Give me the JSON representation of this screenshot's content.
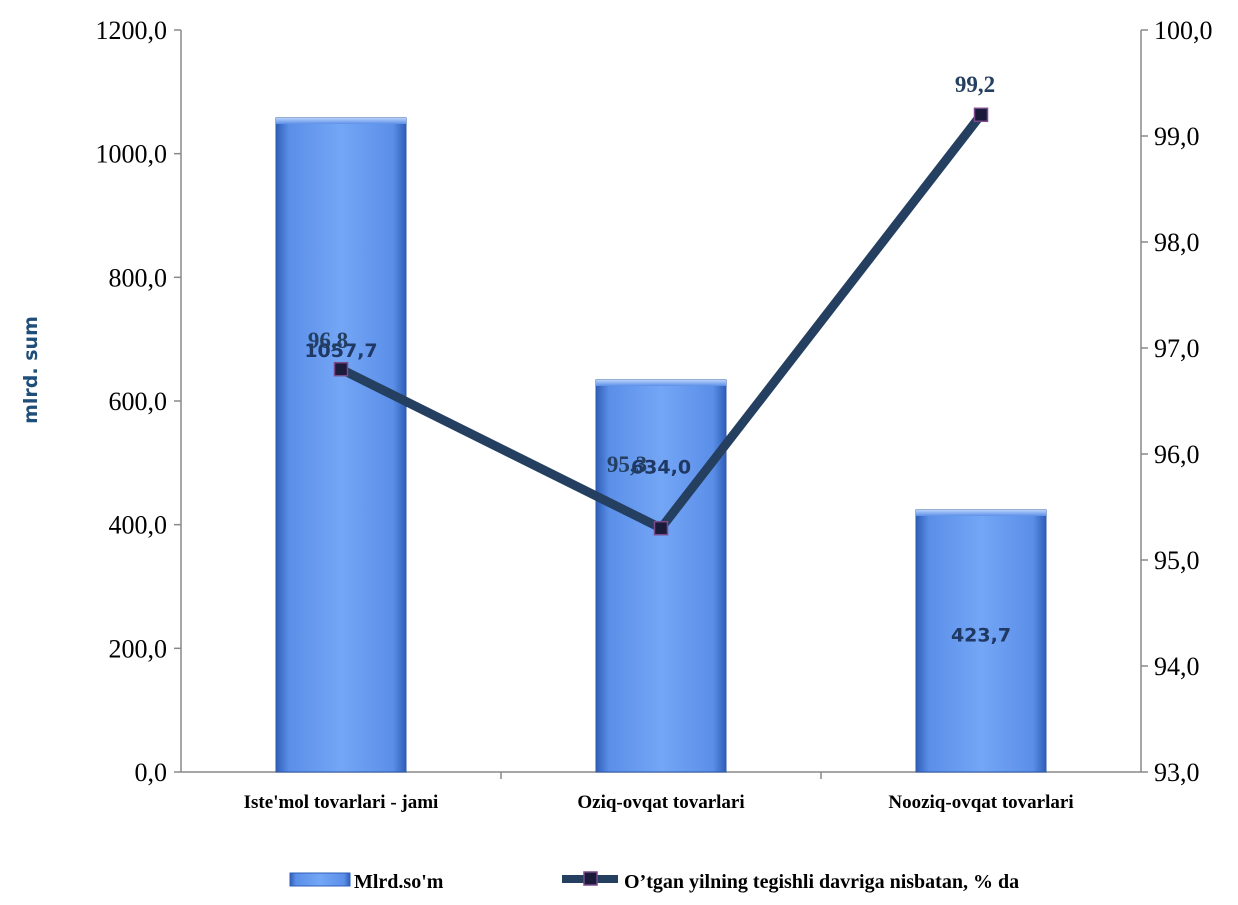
{
  "chart_data": {
    "type": "bar",
    "categories": [
      "Iste'mol tovarlari - jami",
      "Oziq-ovqat tovarlari",
      "Nooziq-ovqat tovarlari"
    ],
    "series": [
      {
        "name": "Mlrd.so'm",
        "type": "bar",
        "axis": "left",
        "values": [
          1057.7,
          634.0,
          423.7
        ],
        "value_labels": [
          "1057,7",
          "634,0",
          "423,7"
        ],
        "color": "#5b8fe8"
      },
      {
        "name": "O’tgan yilning tegishli davriga nisbatan, % da",
        "type": "line",
        "axis": "right",
        "values": [
          96.8,
          95.3,
          99.2
        ],
        "value_labels": [
          "96,8",
          "95,3",
          "99,2"
        ],
        "color": "#243f60",
        "marker_color": "#1a1a3a",
        "marker_edge": "#7a4a8a"
      }
    ],
    "ylabel": "mlrd. sum",
    "ylim": [
      0,
      1200
    ],
    "yticks": [
      "0,0",
      "200,0",
      "400,0",
      "600,0",
      "800,0",
      "1000,0",
      "1200,0"
    ],
    "ylim_right": [
      93,
      100
    ],
    "yticks_right": [
      "93,0",
      "94,0",
      "95,0",
      "96,0",
      "97,0",
      "98,0",
      "99,0",
      "100,0"
    ],
    "grid": false,
    "legend_position": "bottom"
  }
}
